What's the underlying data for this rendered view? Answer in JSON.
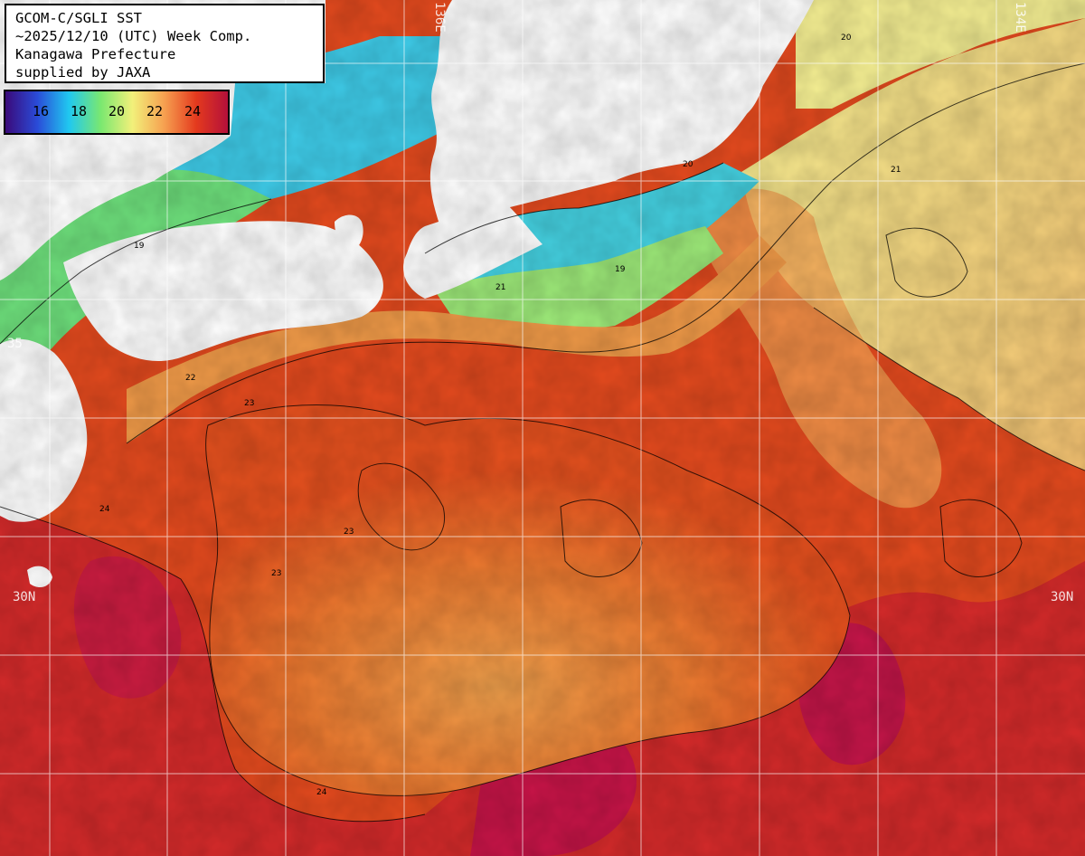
{
  "title_lines": [
    "GCOM-C/SGLI SST",
    "~2025/12/10 (UTC) Week Comp.",
    "Kanagawa Prefecture",
    "supplied by JAXA"
  ],
  "colorbar": {
    "ticks": [
      "16",
      "18",
      "20",
      "22",
      "24"
    ],
    "colors": [
      "#3a0a7a",
      "#2a4bd8",
      "#20c8f0",
      "#7ae870",
      "#f2f07a",
      "#f6a050",
      "#e43a1e",
      "#b4103a"
    ]
  },
  "axis_labels": {
    "lon_136": "136E",
    "lon_134": "134E",
    "lat_left": "30N",
    "lat_right": "30N",
    "top_left_fragment": "35"
  },
  "contour_labels": [
    "19",
    "20",
    "21",
    "22",
    "23",
    "24",
    "21",
    "23",
    "20",
    "19",
    "23",
    "24"
  ],
  "colors": {
    "land": "#ffffff",
    "grid": "#ffffff",
    "contour": "#000000",
    "sea_warm": "#e8471c",
    "sea_hot": "#c8143c",
    "sea_mild": "#f0a050",
    "sea_cool": "#f2e890",
    "sea_cold": "#30c8f0"
  }
}
